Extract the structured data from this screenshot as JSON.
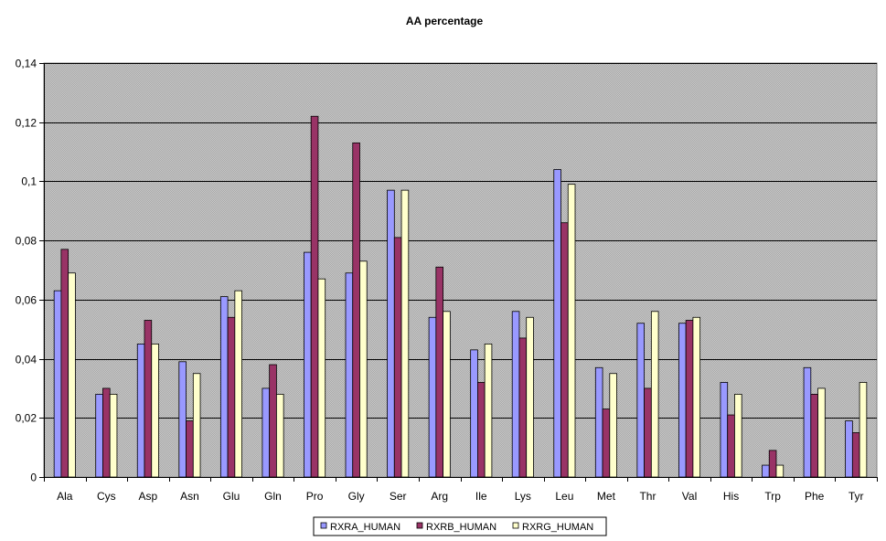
{
  "chart_data": {
    "type": "bar",
    "title": "AA percentage",
    "xlabel": "",
    "ylabel": "",
    "ylim": [
      0,
      0.14
    ],
    "yticks": [
      "0",
      "0,02",
      "0,04",
      "0,06",
      "0,08",
      "0,1",
      "0,12",
      "0,14"
    ],
    "grid": true,
    "legend_position": "bottom",
    "categories": [
      "Ala",
      "Cys",
      "Asp",
      "Asn",
      "Glu",
      "Gln",
      "Pro",
      "Gly",
      "Ser",
      "Arg",
      "Ile",
      "Lys",
      "Leu",
      "Met",
      "Thr",
      "Val",
      "His",
      "Trp",
      "Phe",
      "Tyr"
    ],
    "series": [
      {
        "name": "RXRA_HUMAN",
        "color": "#9999ff",
        "values": [
          0.063,
          0.028,
          0.045,
          0.039,
          0.061,
          0.03,
          0.076,
          0.069,
          0.097,
          0.054,
          0.043,
          0.056,
          0.104,
          0.037,
          0.052,
          0.052,
          0.032,
          0.004,
          0.037,
          0.019
        ]
      },
      {
        "name": "RXRB_HUMAN",
        "color": "#993366",
        "values": [
          0.077,
          0.03,
          0.053,
          0.019,
          0.054,
          0.038,
          0.122,
          0.113,
          0.081,
          0.071,
          0.032,
          0.047,
          0.086,
          0.023,
          0.03,
          0.053,
          0.021,
          0.009,
          0.028,
          0.015
        ]
      },
      {
        "name": "RXRG_HUMAN",
        "color": "#ffffcc",
        "values": [
          0.069,
          0.028,
          0.045,
          0.035,
          0.063,
          0.028,
          0.067,
          0.073,
          0.097,
          0.056,
          0.045,
          0.054,
          0.099,
          0.035,
          0.056,
          0.054,
          0.028,
          0.004,
          0.03,
          0.032
        ]
      }
    ],
    "plot_background": "#c0c0c0"
  }
}
